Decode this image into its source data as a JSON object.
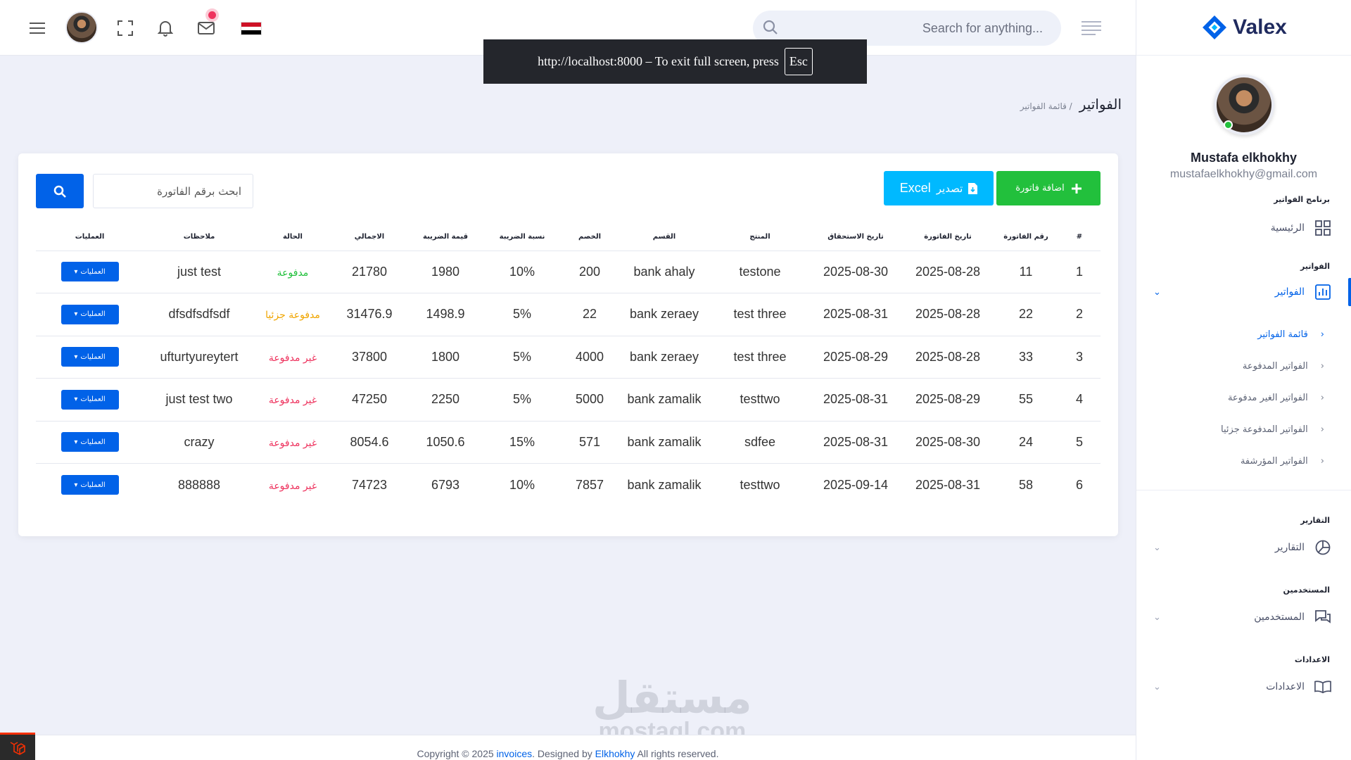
{
  "brand": {
    "name": "Valex",
    "logo_color": "#0162e8"
  },
  "header": {
    "search_placeholder": "Search for anything...",
    "fullscreen_notice": "http://localhost:8000 – To exit full screen, press",
    "fullscreen_key": "Esc",
    "flag": "egypt"
  },
  "user": {
    "name": "Mustafa elkhokhy",
    "email": "mustafaelkhokhy@gmail.com",
    "status": "online"
  },
  "sidebar": {
    "sections": {
      "program": "برنامج الفواتير",
      "invoices": "الفواتير",
      "reports": "التقارير",
      "users": "المستخدمين",
      "settings": "الاعدادات"
    },
    "items": {
      "home": "الرئيسية",
      "invoices": "الفواتير",
      "reports": "التقارير",
      "users": "المستخدمين",
      "settings": "الاعدادات"
    },
    "sub_items": [
      {
        "label": "قائمة الفواتير",
        "active": true
      },
      {
        "label": "الفواتير المدفوعة",
        "active": false
      },
      {
        "label": "الفواتير الغير مدفوعة",
        "active": false
      },
      {
        "label": "الفواتير المدفوعة جزئيا",
        "active": false
      },
      {
        "label": "الفواتير المؤرشفة",
        "active": false
      }
    ]
  },
  "breadcrumb": {
    "title": "الفواتير",
    "sub": "/ قائمة الفواتير"
  },
  "toolbar": {
    "add_label": "اضافة فاتورة",
    "export_label": "تصدير",
    "export_format": "Excel",
    "invoice_search_placeholder": "ابحث برقم الفاتورة"
  },
  "table": {
    "headers": [
      "#",
      "رقم الفاتورة",
      "تاريخ الفاتورة",
      "تاريخ الاستحقاق",
      "المنتج",
      "القسم",
      "الخصم",
      "نسبة الضريبة",
      "قيمة الضريبة",
      "الاجمالي",
      "الحالة",
      "ملاحظات",
      "العمليات"
    ],
    "action_label": "العمليات",
    "rows": [
      {
        "idx": "1",
        "num": "11",
        "inv_date": "2025-08-28",
        "due_date": "2025-08-30",
        "product": "testone",
        "section": "bank ahaly",
        "discount": "200",
        "rate": "10%",
        "tax": "1980",
        "total": "21780",
        "status": "مدفوعة",
        "status_color": "#22c03c",
        "note": "just test"
      },
      {
        "idx": "2",
        "num": "22",
        "inv_date": "2025-08-28",
        "due_date": "2025-08-31",
        "product": "test three",
        "section": "bank zeraey",
        "discount": "22",
        "rate": "5%",
        "tax": "1498.9",
        "total": "31476.9",
        "status": "مدفوعة جزئيا",
        "status_color": "#f0a500",
        "note": "dfsdfsdfsdf"
      },
      {
        "idx": "3",
        "num": "33",
        "inv_date": "2025-08-28",
        "due_date": "2025-08-29",
        "product": "test three",
        "section": "bank zeraey",
        "discount": "4000",
        "rate": "5%",
        "tax": "1800",
        "total": "37800",
        "status": "غير مدفوعة",
        "status_color": "#ee335e",
        "note": "ufturtyureytert"
      },
      {
        "idx": "4",
        "num": "55",
        "inv_date": "2025-08-29",
        "due_date": "2025-08-31",
        "product": "testtwo",
        "section": "bank zamalik",
        "discount": "5000",
        "rate": "5%",
        "tax": "2250",
        "total": "47250",
        "status": "غير مدفوعة",
        "status_color": "#ee335e",
        "note": "just test two"
      },
      {
        "idx": "5",
        "num": "24",
        "inv_date": "2025-08-30",
        "due_date": "2025-08-31",
        "product": "sdfee",
        "section": "bank zamalik",
        "discount": "571",
        "rate": "15%",
        "tax": "1050.6",
        "total": "8054.6",
        "status": "غير مدفوعة",
        "status_color": "#ee335e",
        "note": "crazy"
      },
      {
        "idx": "6",
        "num": "58",
        "inv_date": "2025-08-31",
        "due_date": "2025-09-14",
        "product": "testtwo",
        "section": "bank zamalik",
        "discount": "7857",
        "rate": "10%",
        "tax": "6793",
        "total": "74723",
        "status": "غير مدفوعة",
        "status_color": "#ee335e",
        "note": "888888"
      }
    ]
  },
  "watermark": {
    "arabic": "مستقل",
    "latin": "mostaql.com"
  },
  "footer": {
    "prefix": "Copyright © 2025 ",
    "app_link": "invoices",
    "middle": ". Designed by ",
    "author_link": "Elkhokhy",
    "suffix": " All rights reserved."
  },
  "colors": {
    "primary": "#0162e8",
    "success": "#22c03c",
    "info": "#00b9ff",
    "danger": "#ee335e",
    "warning": "#f0a500"
  }
}
